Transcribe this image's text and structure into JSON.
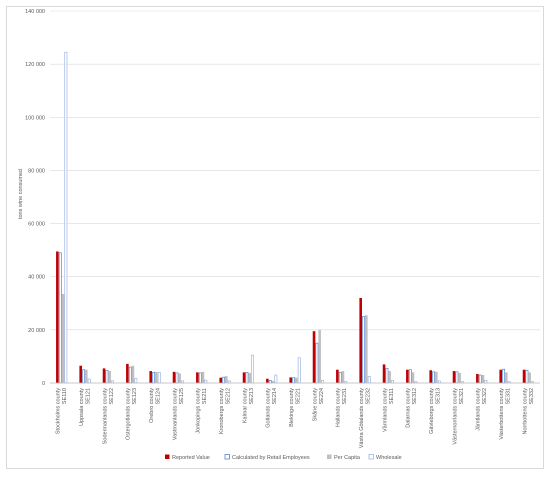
{
  "chart_data": {
    "type": "bar",
    "ylabel": "tons wine consumed",
    "xlabel": "",
    "title": "",
    "ylim": [
      0,
      140000
    ],
    "yticks": [
      0,
      20000,
      40000,
      60000,
      80000,
      100000,
      120000,
      140000
    ],
    "ytick_labels": [
      "0",
      "20 000",
      "40 000",
      "60 000",
      "80 000",
      "100 000",
      "120 000",
      "140 000"
    ],
    "grid": "horizontal",
    "legend_position": "bottom",
    "categories": [
      "Stockholms county SE110",
      "Uppsala county SE121",
      "Sodermanlands county SE122",
      "Ostergotlands county SE123",
      "Orebro county SE124",
      "Vastmanlands county SE125",
      "Jonkopings county SE211",
      "Kronobergs county SE212",
      "Kalmar county SE213",
      "Gotlands county SE214",
      "Blekinge county SE221",
      "Skåne county SE224",
      "Hallands county SE231",
      "Västra Götalands county SE232",
      "Värmlands county SE311",
      "Dalarnas county SE312",
      "Gävleborgs county SE313",
      "Västernorrlands county SE321",
      "Jämtlands county SE322",
      "Västerbottens county SE331",
      "Norrbottens county SE332"
    ],
    "series": [
      {
        "name": "Reported Value",
        "color": "#c00000",
        "style": "solid",
        "values": [
          49500,
          6500,
          5500,
          7200,
          4500,
          4200,
          4000,
          2000,
          4000,
          1600,
          2100,
          19500,
          5000,
          32000,
          7000,
          5000,
          4800,
          4500,
          3400,
          5000,
          5000
        ]
      },
      {
        "name": "Calculated by Retail Employees",
        "color": "#4472c4",
        "style": "outline",
        "values": [
          49000,
          5000,
          4800,
          6000,
          4000,
          3800,
          3800,
          2200,
          4000,
          1000,
          2000,
          15000,
          4000,
          25000,
          5500,
          5000,
          4200,
          4200,
          3000,
          5200,
          4800
        ]
      },
      {
        "name": "Per Capita",
        "color": "#bfbfbf",
        "style": "solid",
        "values": [
          33500,
          5000,
          4500,
          6500,
          4200,
          3600,
          4200,
          2600,
          3800,
          800,
          2000,
          20000,
          4500,
          25500,
          4500,
          4000,
          4200,
          3800,
          3000,
          4000,
          4000
        ]
      },
      {
        "name": "Wholesale",
        "color": "#8faadc",
        "style": "outline",
        "values": [
          124500,
          1500,
          800,
          1700,
          4000,
          800,
          1100,
          800,
          10500,
          3000,
          9500,
          1000,
          500,
          2500,
          1000,
          500,
          800,
          500,
          1000,
          500,
          500
        ]
      }
    ]
  }
}
